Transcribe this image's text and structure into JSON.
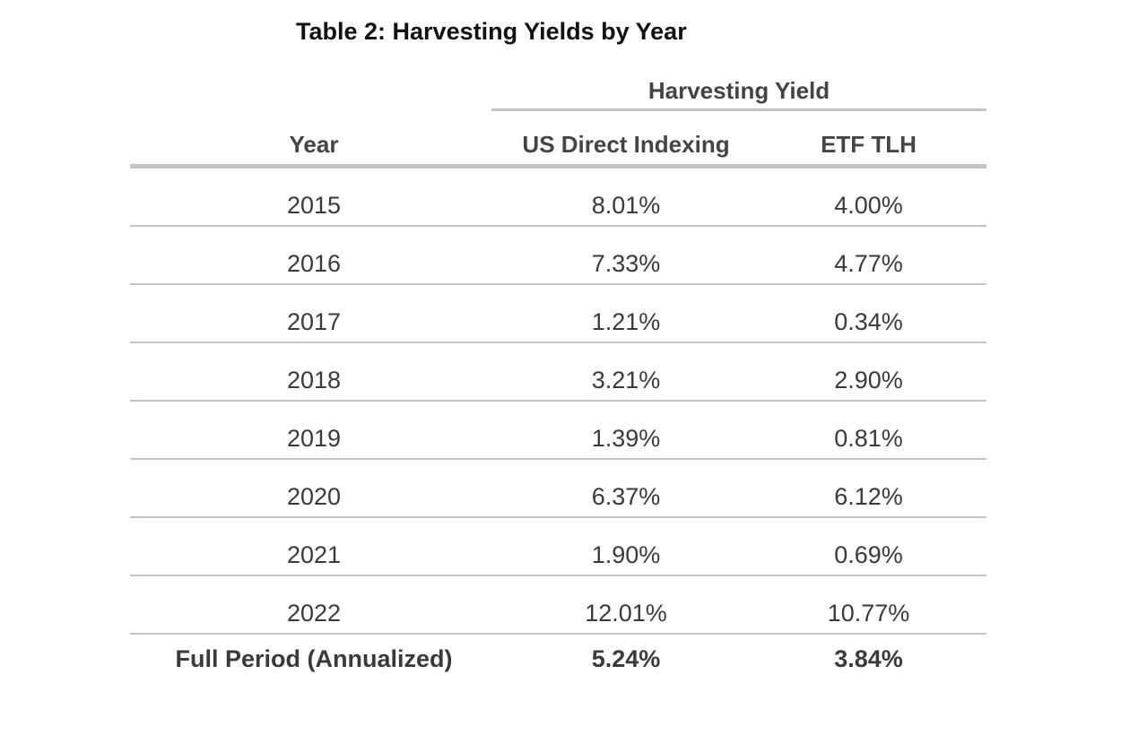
{
  "chart_data": {
    "type": "table",
    "title": "Table 2: Harvesting Yields by Year",
    "spanner_label": "Harvesting Yield",
    "columns": [
      "Year",
      "US Direct Indexing",
      "ETF TLH"
    ],
    "rows": [
      {
        "year": "2015",
        "us_direct_indexing": "8.01%",
        "etf_tlh": "4.00%"
      },
      {
        "year": "2016",
        "us_direct_indexing": "7.33%",
        "etf_tlh": "4.77%"
      },
      {
        "year": "2017",
        "us_direct_indexing": "1.21%",
        "etf_tlh": "0.34%"
      },
      {
        "year": "2018",
        "us_direct_indexing": "3.21%",
        "etf_tlh": "2.90%"
      },
      {
        "year": "2019",
        "us_direct_indexing": "1.39%",
        "etf_tlh": "0.81%"
      },
      {
        "year": "2020",
        "us_direct_indexing": "6.37%",
        "etf_tlh": "6.12%"
      },
      {
        "year": "2021",
        "us_direct_indexing": "1.90%",
        "etf_tlh": "0.69%"
      },
      {
        "year": "2022",
        "us_direct_indexing": "12.01%",
        "etf_tlh": "10.77%"
      }
    ],
    "summary": {
      "label": "Full Period (Annualized)",
      "us_direct_indexing": "5.24%",
      "etf_tlh": "3.84%"
    },
    "series": [
      {
        "name": "US Direct Indexing",
        "values": [
          8.01,
          7.33,
          1.21,
          3.21,
          1.39,
          6.37,
          1.9,
          12.01
        ]
      },
      {
        "name": "ETF TLH",
        "values": [
          4.0,
          4.77,
          0.34,
          2.9,
          0.81,
          6.12,
          0.69,
          10.77
        ]
      }
    ],
    "categories": [
      "2015",
      "2016",
      "2017",
      "2018",
      "2019",
      "2020",
      "2021",
      "2022"
    ]
  }
}
